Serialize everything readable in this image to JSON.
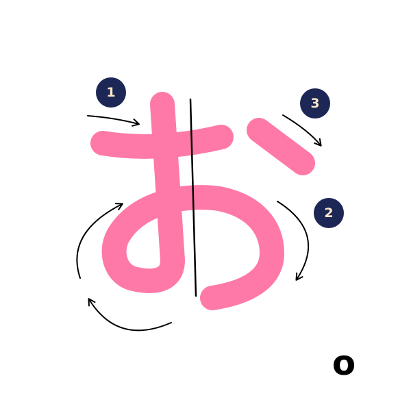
{
  "romaji": "o",
  "character": "お",
  "stroke_badges": {
    "one": "1",
    "two": "2",
    "three": "3"
  },
  "colors": {
    "stroke": "#ff79a8",
    "badge_background": "#1c2755",
    "badge_text": "#ffe6c8",
    "arrow": "#000000"
  }
}
